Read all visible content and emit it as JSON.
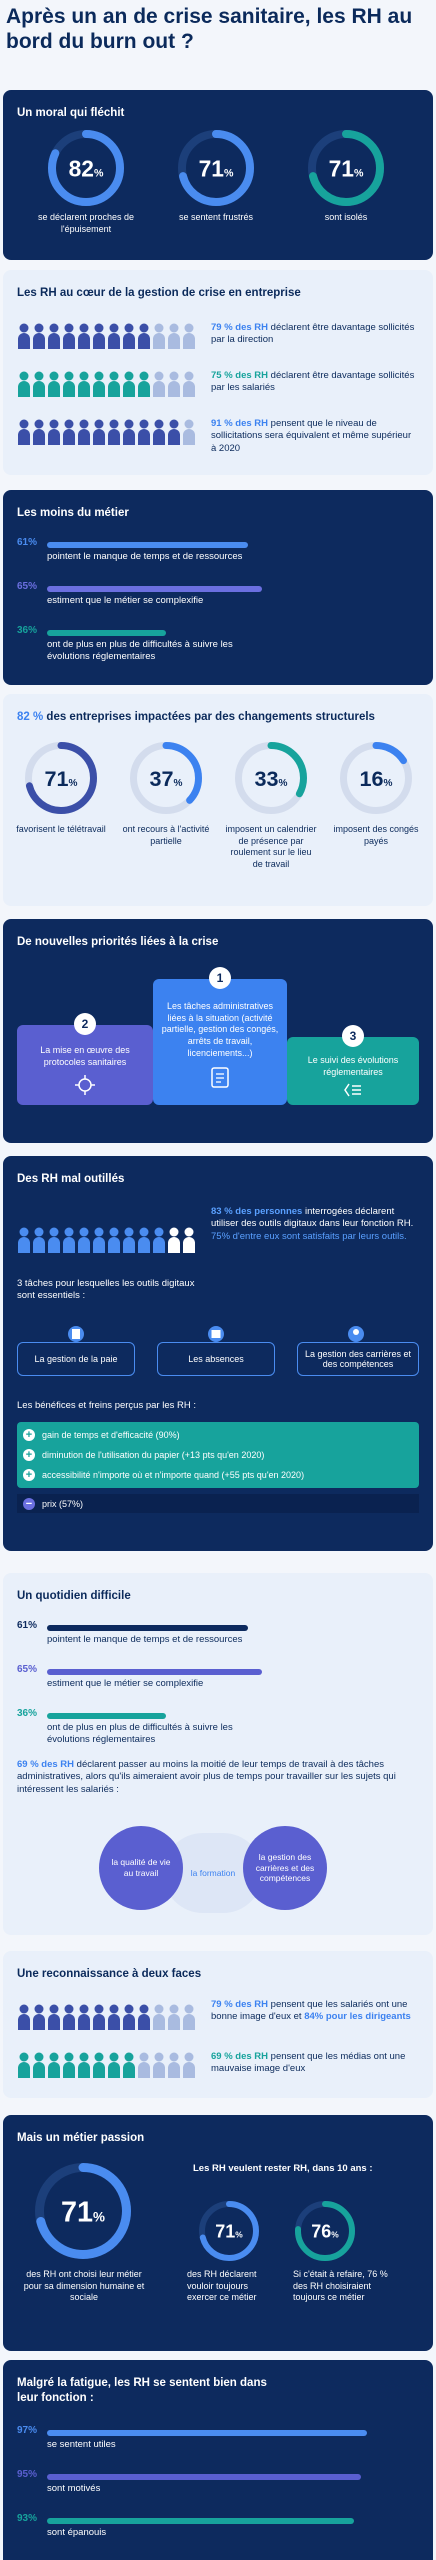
{
  "header": {
    "title": "Après un an de crise sanitaire, les RH au bord du burn out ?"
  },
  "moral": {
    "title": "Un moral qui fléchit",
    "stats": [
      {
        "value": 82,
        "unit": "%",
        "label": "se déclarent proches de l'épuisement"
      },
      {
        "value": 71,
        "unit": "%",
        "label": "se sentent frustrés"
      },
      {
        "value": 71,
        "unit": "%",
        "label": "sont isolés"
      }
    ]
  },
  "crise": {
    "title": "Les RH au cœur de la gestion de crise en entreprise",
    "items": [
      {
        "highlight": "79 % des RH",
        "text": "déclarent être davantage sollicités par la direction"
      },
      {
        "highlight": "75 % des RH",
        "text": "déclarent être davantage sollicités par les salariés"
      },
      {
        "highlight": "91 % des RH",
        "text": "pensent que le niveau de sollicitations sera équivalent et même supérieur à 2020"
      }
    ]
  },
  "moins": {
    "title": "Les moins du métier",
    "bars": [
      {
        "value": 61,
        "label": "61%",
        "text": "pointent le manque de temps et de ressources"
      },
      {
        "value": 65,
        "label": "65%",
        "text": "estiment que le métier se complexifie"
      },
      {
        "value": 36,
        "label": "36%",
        "text": "ont de plus en plus de difficultés à suivre les évolutions réglementaires"
      }
    ]
  },
  "structurels": {
    "highlight": "82 %",
    "title": "des entreprises impactées par des changements structurels",
    "stats": [
      {
        "value": 71,
        "unit": "%",
        "label": "favorisent le télétravail"
      },
      {
        "value": 37,
        "unit": "%",
        "label": "ont recours à l'activité partielle"
      },
      {
        "value": 33,
        "unit": "%",
        "label": "imposent un calendrier de présence par roulement sur le lieu de travail"
      },
      {
        "value": 16,
        "unit": "%",
        "label": "imposent des congés payés"
      }
    ]
  },
  "priorites": {
    "title": "De nouvelles priorités liées à la crise",
    "items": [
      {
        "rank": "2",
        "text": "La mise en œuvre des protocoles sanitaires"
      },
      {
        "rank": "1",
        "text": "Les tâches administratives liées à la situation (activité partielle, gestion des congés, arrêts de travail, licenciements...)"
      },
      {
        "rank": "3",
        "text": "Le suivi des évolutions réglementaires"
      }
    ]
  },
  "outils": {
    "title": "Des RH mal outillés",
    "intro": {
      "highlight": "83 % des personnes",
      "text": "interrogées déclarent utiliser des outils digitaux dans leur fonction RH.",
      "highlight2": "75% d'entre eux sont satisfaits par leurs outils."
    },
    "tasks_title": "3 tâches pour lesquelles les outils digitaux sont essentiels :",
    "tasks": [
      "La gestion de la paie",
      "Les absences",
      "La gestion des carrières et des compétences"
    ],
    "benefits_title": "Les bénéfices et freins perçus par les RH :",
    "benefits": [
      {
        "sign": "+",
        "text": "gain de temps et d'efficacité (90%)"
      },
      {
        "sign": "+",
        "text": "diminution de l'utilisation du papier (+13 pts qu'en 2020)"
      },
      {
        "sign": "+",
        "text": "accessibilité n'importe où et n'importe quand (+55 pts qu'en 2020)"
      },
      {
        "sign": "−",
        "text": "prix (57%)"
      }
    ]
  },
  "quotidien": {
    "title": "Un quotidien difficile",
    "bars": [
      {
        "value": 61,
        "label": "61%",
        "text": "pointent le manque de temps et de ressources"
      },
      {
        "value": 65,
        "label": "65%",
        "text": "estiment que le métier se complexifie"
      },
      {
        "value": 36,
        "label": "36%",
        "text": "ont de plus en plus de difficultés à suivre les évolutions réglementaires"
      }
    ],
    "note": {
      "highlight": "69 % des RH",
      "text": "déclarent passer au moins la moitié de leur temps de travail à des tâches administratives, alors qu'ils aimeraient avoir plus de temps pour travailler sur les sujets qui intéressent les salariés :"
    },
    "circles": [
      "la qualité de vie au travail",
      "la formation",
      "la gestion des carrières et des compétences"
    ]
  },
  "reconnaissance": {
    "title": "Une reconnaissance à deux faces",
    "items": [
      {
        "highlight": "79 % des RH",
        "text": "pensent que les salariés ont une bonne image d'eux et",
        "highlight2": "84% pour les dirigeants"
      },
      {
        "highlight": "69 % des RH",
        "text": "pensent que les médias ont une mauvaise image d'eux"
      }
    ]
  },
  "passion": {
    "title": "Mais un métier passion",
    "main": {
      "value": 71,
      "unit": "%",
      "label": "des RH ont choisi leur métier pour sa dimension humaine et sociale"
    },
    "subtitle": "Les RH veulent rester RH, dans 10 ans :",
    "stats": [
      {
        "value": 71,
        "unit": "%",
        "label": "des RH déclarent vouloir toujours exercer ce métier"
      },
      {
        "value": 76,
        "unit": "%",
        "label": "Si c'était à refaire, 76 % des RH choisiraient toujours ce métier"
      }
    ]
  },
  "fatigue": {
    "title": "Malgré la fatigue, les RH se sentent bien dans leur fonction :",
    "bars": [
      {
        "value": 97,
        "label": "97%",
        "text": "se sentent utiles"
      },
      {
        "value": 95,
        "label": "95%",
        "text": "sont motivés"
      },
      {
        "value": 93,
        "label": "93%",
        "text": "sont épanouis"
      }
    ]
  }
}
